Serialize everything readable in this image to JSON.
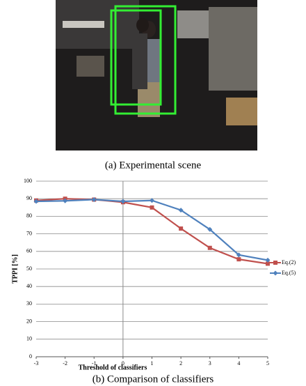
{
  "figure": {
    "photo_caption": "(a) Experimental scene",
    "chart_caption": "(b) Comparison of classifiers"
  },
  "chart_data": {
    "type": "line",
    "x_label": "Threshold of classifiers",
    "y_label": "TPPI [%]",
    "x": [
      -3,
      -2,
      -1,
      0,
      1,
      2,
      3,
      4,
      5
    ],
    "series": [
      {
        "name": "Eq.(2)",
        "color": "#c0504d",
        "marker": "square",
        "values": [
          89,
          90,
          89.5,
          88,
          85,
          73,
          62,
          55.5,
          53
        ]
      },
      {
        "name": "Eq.(5)",
        "color": "#4f81bd",
        "marker": "diamond",
        "values": [
          88.5,
          88.8,
          89.5,
          88.5,
          89,
          83.5,
          72.5,
          58,
          55
        ]
      }
    ],
    "xlim": [
      -3,
      5
    ],
    "xticks": [
      -3,
      -2,
      -1,
      0,
      1,
      2,
      3,
      4,
      5
    ],
    "ylim": [
      0,
      100
    ],
    "yticks": [
      0,
      10,
      20,
      30,
      40,
      50,
      60,
      70,
      80,
      90,
      100
    ],
    "grid": true,
    "legend": "right"
  }
}
